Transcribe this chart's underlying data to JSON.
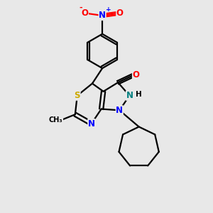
{
  "bg_color": "#e8e8e8",
  "atom_colors": {
    "C": "#000000",
    "N": "#0000ff",
    "N2": "#008080",
    "O": "#ff0000",
    "S": "#ccaa00"
  },
  "bond_color": "#000000",
  "bond_width": 1.6,
  "font_size_atom": 8.5
}
